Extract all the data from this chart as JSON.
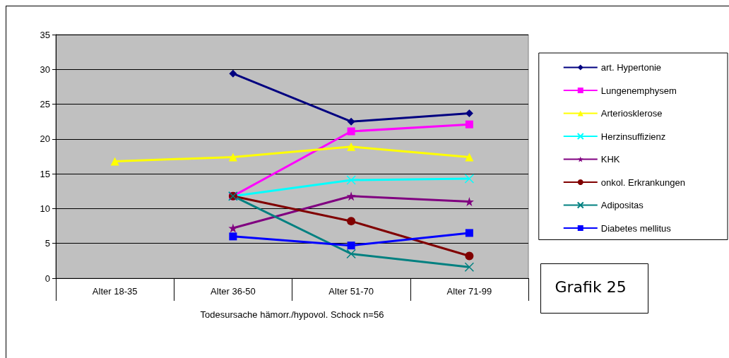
{
  "chart_data": {
    "type": "line",
    "xlabel": "Todesursache hämorr./hypovol. Schock n=56",
    "categories": [
      "Alter 18-35",
      "Alter 36-50",
      "Alter 51-70",
      "Alter 71-99"
    ],
    "series": [
      {
        "name": "art. Hypertonie",
        "color": "#000080",
        "marker": "diamond",
        "values": [
          null,
          29.4,
          22.5,
          23.7
        ]
      },
      {
        "name": "Lungenemphysem",
        "color": "#ff00ff",
        "marker": "square",
        "values": [
          null,
          11.8,
          21.1,
          22.1
        ]
      },
      {
        "name": "Arteriosklerose",
        "color": "#ffff00",
        "marker": "triangle",
        "values": [
          16.8,
          17.4,
          18.9,
          17.4
        ]
      },
      {
        "name": "Herzinsuffizienz",
        "color": "#00ffff",
        "marker": "cross",
        "values": [
          null,
          11.8,
          14.1,
          14.3
        ]
      },
      {
        "name": "KHK",
        "color": "#800080",
        "marker": "star",
        "values": [
          null,
          7.2,
          11.8,
          11.0
        ]
      },
      {
        "name": "onkol. Erkrankungen",
        "color": "#800000",
        "marker": "circle",
        "values": [
          null,
          11.8,
          8.2,
          3.2
        ]
      },
      {
        "name": "Adipositas",
        "color": "#008080",
        "marker": "cross",
        "values": [
          null,
          11.8,
          3.5,
          1.6
        ]
      },
      {
        "name": "Diabetes mellitus",
        "color": "#0000ff",
        "marker": "square",
        "values": [
          null,
          6.0,
          4.7,
          6.5
        ]
      }
    ],
    "ylim": [
      0,
      35
    ],
    "yticks": [
      0,
      5,
      10,
      15,
      20,
      25,
      30,
      35
    ],
    "grid": "y",
    "legend": "right",
    "annotations": [
      "Grafik 25"
    ]
  }
}
